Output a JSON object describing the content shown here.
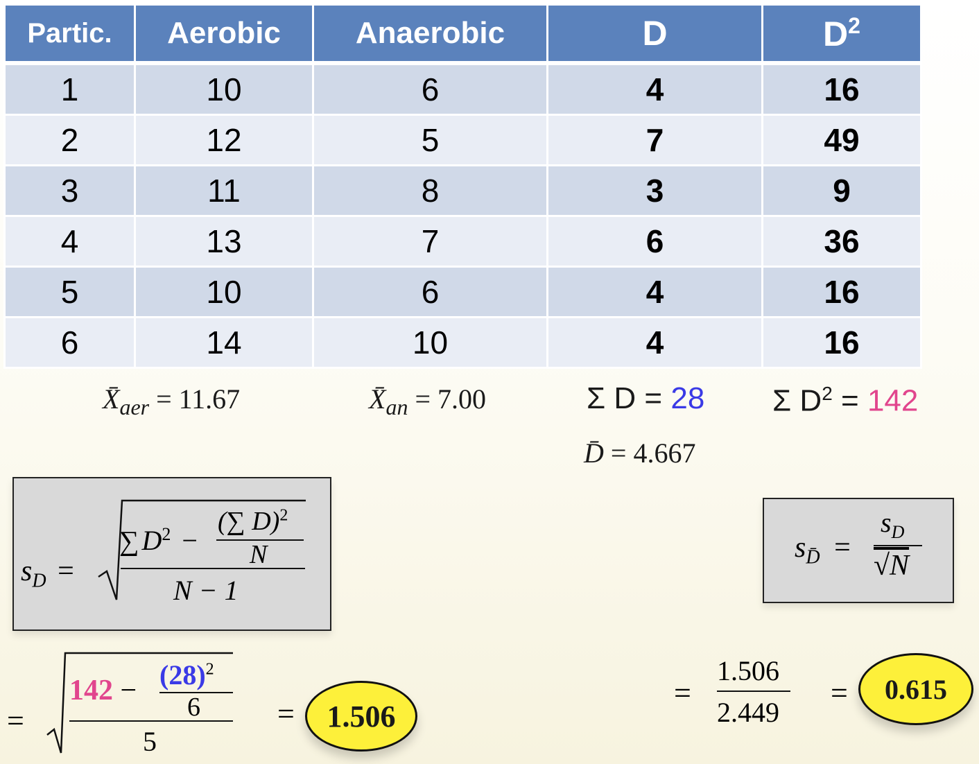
{
  "table": {
    "headers": [
      "Partic.",
      "Aerobic",
      "Anaerobic",
      "D",
      "D",
      "2"
    ],
    "rows": [
      {
        "partic": "1",
        "aerobic": "10",
        "anaerobic": "6",
        "d": "4",
        "d2": "16"
      },
      {
        "partic": "2",
        "aerobic": "12",
        "anaerobic": "5",
        "d": "7",
        "d2": "49"
      },
      {
        "partic": "3",
        "aerobic": "11",
        "anaerobic": "8",
        "d": "3",
        "d2": "9"
      },
      {
        "partic": "4",
        "aerobic": "13",
        "anaerobic": "7",
        "d": "6",
        "d2": "36"
      },
      {
        "partic": "5",
        "aerobic": "10",
        "anaerobic": "6",
        "d": "4",
        "d2": "16"
      },
      {
        "partic": "6",
        "aerobic": "14",
        "anaerobic": "10",
        "d": "4",
        "d2": "16"
      }
    ]
  },
  "summary": {
    "mean_aer_symbol": "X̄",
    "mean_aer_sub": "aer",
    "mean_aer_value": "= 11.67",
    "mean_an_symbol": "X̄",
    "mean_an_sub": "an",
    "mean_an_value": "= 7.00",
    "sum_d_label": "Σ D =",
    "sum_d_value": "28",
    "sum_d2_label_a": "Σ D",
    "sum_d2_label_sup": "2",
    "sum_d2_label_b": "=",
    "sum_d2_value": "142",
    "dbar_symbol": "D̄",
    "dbar_value": "= 4.667"
  },
  "formula_sd": {
    "lhs_s": "s",
    "lhs_sub": "D",
    "equals": "=",
    "num_sigma": "∑",
    "num_d": "D",
    "num_sup": "2",
    "minus": "−",
    "inner_num": "(∑ D)",
    "inner_sup": "2",
    "inner_den": "N",
    "den": "N − 1"
  },
  "formula_sdbar": {
    "lhs_s": "s",
    "lhs_sub": "D̄",
    "equals": "=",
    "num_s": "s",
    "num_sub": "D",
    "den": "√N"
  },
  "calc_sd": {
    "equals": "=",
    "val_142": "142",
    "minus": "−",
    "val_28": "(28)",
    "sup": "2",
    "inner_den": "6",
    "den": "5",
    "equals2": "=",
    "result": "1.506"
  },
  "calc_sdbar": {
    "equals": "=",
    "num": "1.506",
    "den": "2.449",
    "equals2": "=",
    "result": "0.615"
  },
  "colors": {
    "header": "#5b82bc",
    "row_odd": "#d0d9e8",
    "row_even": "#e9edf5",
    "d_blue": "#3a3ae6",
    "d2_pink": "#e1458d",
    "highlight": "#fdf03a"
  }
}
